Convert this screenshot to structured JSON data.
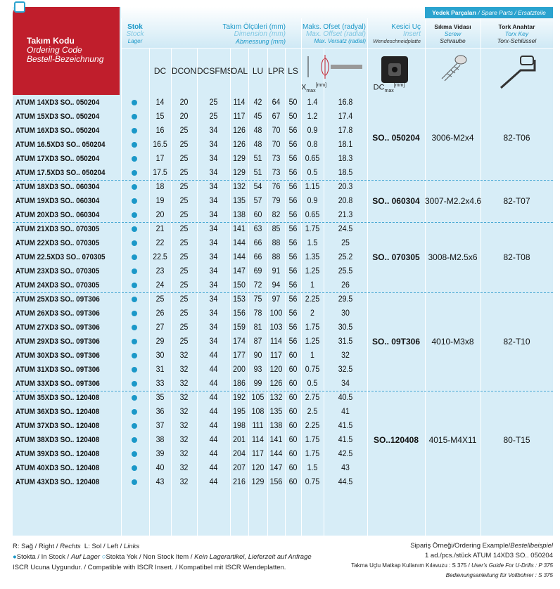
{
  "header": {
    "ordering": [
      "Takım Kodu",
      "Ordering Code",
      "Bestell-Bezeichnung"
    ],
    "stock": [
      "Stok",
      "Stock",
      "Lager"
    ],
    "dimensions": [
      "Takım Ölçüleri (mm)",
      "Dimension (mm)",
      "Abmessung (mm)"
    ],
    "offset": [
      "Maks. Ofset (radyal)",
      "Max. Offset (radial)",
      "Max. Versatz (radial)"
    ],
    "insert": [
      "Kesici Uç",
      "Insert",
      "Wendeschneidplatte"
    ],
    "spare": [
      "Yedek Parçaları",
      "/ Spare Parts /",
      "Ersatzteile"
    ],
    "screw": [
      "Sıkma Vidası",
      "Screw",
      "Schraube"
    ],
    "key": [
      "Tork Anahtar",
      "Torx Key",
      "Torx-Schlüssel"
    ],
    "columns": [
      "DC",
      "DCON",
      "DCSFMS",
      "OAL",
      "LU",
      "LPR",
      "LS"
    ],
    "offset_columns": [
      {
        "main": "X",
        "sub": "max",
        "unit": "[mm]"
      },
      {
        "main": "DC",
        "sub": "max",
        "unit": "[mm]"
      }
    ]
  },
  "groups": [
    {
      "insert": "SO.. 050204",
      "screw": "3006-M2x4",
      "key": "82-T06",
      "rows": [
        [
          "ATUM 14XD3 SO.. 050204",
          "14",
          "20",
          "25",
          "114",
          "42",
          "64",
          "50",
          "1.4",
          "16.8"
        ],
        [
          "ATUM 15XD3 SO.. 050204",
          "15",
          "20",
          "25",
          "117",
          "45",
          "67",
          "50",
          "1.2",
          "17.4"
        ],
        [
          "ATUM 16XD3 SO.. 050204",
          "16",
          "25",
          "34",
          "126",
          "48",
          "70",
          "56",
          "0.9",
          "17.8"
        ],
        [
          "ATUM 16.5XD3 SO.. 050204",
          "16.5",
          "25",
          "34",
          "126",
          "48",
          "70",
          "56",
          "0.8",
          "18.1"
        ],
        [
          "ATUM 17XD3 SO.. 050204",
          "17",
          "25",
          "34",
          "129",
          "51",
          "73",
          "56",
          "0.65",
          "18.3"
        ],
        [
          "ATUM 17.5XD3 SO.. 050204",
          "17.5",
          "25",
          "34",
          "129",
          "51",
          "73",
          "56",
          "0.5",
          "18.5"
        ]
      ]
    },
    {
      "insert": "SO.. 060304",
      "screw": "3007-M2.2x4.6",
      "key": "82-T07",
      "rows": [
        [
          "ATUM 18XD3 SO.. 060304",
          "18",
          "25",
          "34",
          "132",
          "54",
          "76",
          "56",
          "1.15",
          "20.3"
        ],
        [
          "ATUM 19XD3 SO.. 060304",
          "19",
          "25",
          "34",
          "135",
          "57",
          "79",
          "56",
          "0.9",
          "20.8"
        ],
        [
          "ATUM 20XD3 SO.. 060304",
          "20",
          "25",
          "34",
          "138",
          "60",
          "82",
          "56",
          "0.65",
          "21.3"
        ]
      ]
    },
    {
      "insert": "SO.. 070305",
      "screw": "3008-M2.5x6",
      "key": "82-T08",
      "rows": [
        [
          "ATUM 21XD3 SO.. 070305",
          "21",
          "25",
          "34",
          "141",
          "63",
          "85",
          "56",
          "1.75",
          "24.5"
        ],
        [
          "ATUM 22XD3 SO.. 070305",
          "22",
          "25",
          "34",
          "144",
          "66",
          "88",
          "56",
          "1.5",
          "25"
        ],
        [
          "ATUM 22.5XD3 SO.. 070305",
          "22.5",
          "25",
          "34",
          "144",
          "66",
          "88",
          "56",
          "1.35",
          "25.2"
        ],
        [
          "ATUM 23XD3 SO.. 070305",
          "23",
          "25",
          "34",
          "147",
          "69",
          "91",
          "56",
          "1.25",
          "25.5"
        ],
        [
          "ATUM 24XD3 SO.. 070305",
          "24",
          "25",
          "34",
          "150",
          "72",
          "94",
          "56",
          "1",
          "26"
        ]
      ]
    },
    {
      "insert": "SO.. 09T306",
      "screw": "4010-M3x8",
      "key": "82-T10",
      "rows": [
        [
          "ATUM 25XD3 SO.. 09T306",
          "25",
          "25",
          "34",
          "153",
          "75",
          "97",
          "56",
          "2.25",
          "29.5"
        ],
        [
          "ATUM 26XD3 SO.. 09T306",
          "26",
          "25",
          "34",
          "156",
          "78",
          "100",
          "56",
          "2",
          "30"
        ],
        [
          "ATUM 27XD3 SO.. 09T306",
          "27",
          "25",
          "34",
          "159",
          "81",
          "103",
          "56",
          "1.75",
          "30.5"
        ],
        [
          "ATUM 29XD3 SO.. 09T306",
          "29",
          "25",
          "34",
          "174",
          "87",
          "114",
          "56",
          "1.25",
          "31.5"
        ],
        [
          "ATUM 30XD3 SO.. 09T306",
          "30",
          "32",
          "44",
          "177",
          "90",
          "117",
          "60",
          "1",
          "32"
        ],
        [
          "ATUM 31XD3 SO.. 09T306",
          "31",
          "32",
          "44",
          "200",
          "93",
          "120",
          "60",
          "0.75",
          "32.5"
        ],
        [
          "ATUM 33XD3 SO.. 09T306",
          "33",
          "32",
          "44",
          "186",
          "99",
          "126",
          "60",
          "0.5",
          "34"
        ]
      ]
    },
    {
      "insert": "SO..120408",
      "screw": "4015-M4X11",
      "key": "80-T15",
      "rows": [
        [
          "ATUM 35XD3 SO.. 120408",
          "35",
          "32",
          "44",
          "192",
          "105",
          "132",
          "60",
          "2.75",
          "40.5"
        ],
        [
          "ATUM 36XD3 SO.. 120408",
          "36",
          "32",
          "44",
          "195",
          "108",
          "135",
          "60",
          "2.5",
          "41"
        ],
        [
          "ATUM 37XD3 SO.. 120408",
          "37",
          "32",
          "44",
          "198",
          "111",
          "138",
          "60",
          "2.25",
          "41.5"
        ],
        [
          "ATUM 38XD3 SO.. 120408",
          "38",
          "32",
          "44",
          "201",
          "114",
          "141",
          "60",
          "1.75",
          "41.5"
        ],
        [
          "ATUM 39XD3 SO.. 120408",
          "39",
          "32",
          "44",
          "204",
          "117",
          "144",
          "60",
          "1.75",
          "42.5"
        ],
        [
          "ATUM 40XD3 SO.. 120408",
          "40",
          "32",
          "44",
          "207",
          "120",
          "147",
          "60",
          "1.5",
          "43"
        ],
        [
          "ATUM 43XD3 SO.. 120408",
          "43",
          "32",
          "44",
          "216",
          "129",
          "156",
          "60",
          "0.75",
          "44.5"
        ]
      ]
    }
  ],
  "footer": {
    "left": [
      [
        "R: Sağ / Right /",
        "Rechts",
        "L: Sol / Left /",
        "Links"
      ],
      [
        "Stokta / In Stock /",
        "Auf Lager",
        "Stokta Yok / Non Stock Item /",
        "Kein Lagerartikel, Lieferzeit auf Anfrage"
      ],
      [
        "ISCR Ucuna Uygundur. / Compatible with ISCR Insert. / Kompatibel mit ISCR Wendeplatten."
      ]
    ],
    "right": [
      [
        "Sipariş Örneği/Ordering Example/",
        "Bestellbeispiel"
      ],
      [
        "1 ad./pcs./stück  ATUM 14XD3 SO.. 050204"
      ],
      [
        "Takma Uçlu Matkap Kullanım Kılavuzu : S 375 /",
        "User's Guide For U-Drills : P 375"
      ],
      [
        "Bedienungsanleitung für Vollbohrer : S 375"
      ]
    ]
  }
}
